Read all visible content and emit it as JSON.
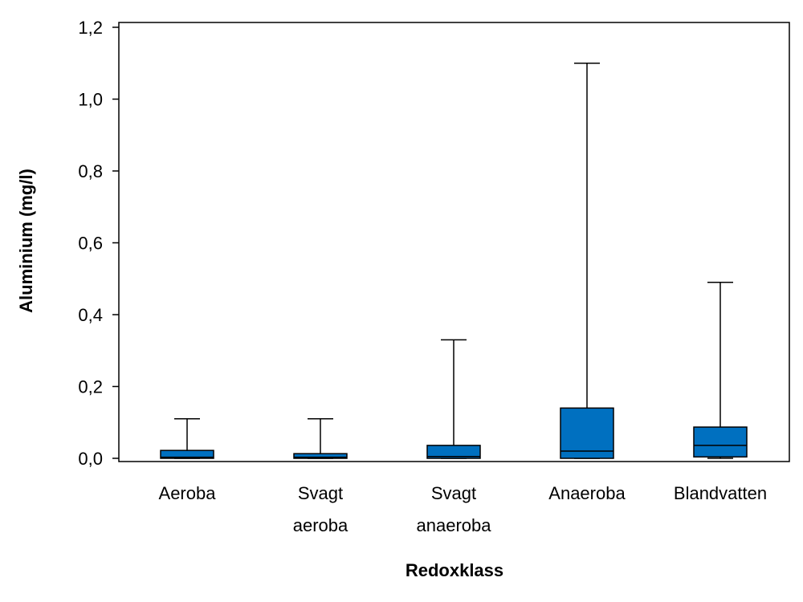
{
  "chart_data": {
    "type": "boxplot",
    "title": "",
    "xlabel": "Redoxklass",
    "ylabel": "Aluminium (mg/l)",
    "ylim": [
      0,
      1.2
    ],
    "yticks": [
      "0,0",
      "0,2",
      "0,4",
      "0,6",
      "0,8",
      "1,0",
      "1,2"
    ],
    "box_color": "#0070C0",
    "grid": false,
    "categories": [
      {
        "label_lines": [
          "Aeroba"
        ],
        "min": 0.0,
        "q1": 0.0,
        "median": 0.003,
        "q3": 0.022,
        "max": 0.11
      },
      {
        "label_lines": [
          "Svagt",
          "aeroba"
        ],
        "min": 0.0,
        "q1": 0.0,
        "median": 0.003,
        "q3": 0.013,
        "max": 0.11
      },
      {
        "label_lines": [
          "Svagt",
          "anaeroba"
        ],
        "min": 0.0,
        "q1": 0.0,
        "median": 0.005,
        "q3": 0.036,
        "max": 0.33
      },
      {
        "label_lines": [
          "Anaeroba"
        ],
        "min": 0.0,
        "q1": 0.0,
        "median": 0.02,
        "q3": 0.14,
        "max": 1.1
      },
      {
        "label_lines": [
          "Blandvatten"
        ],
        "min": 0.0,
        "q1": 0.004,
        "median": 0.036,
        "q3": 0.087,
        "max": 0.49
      }
    ]
  }
}
